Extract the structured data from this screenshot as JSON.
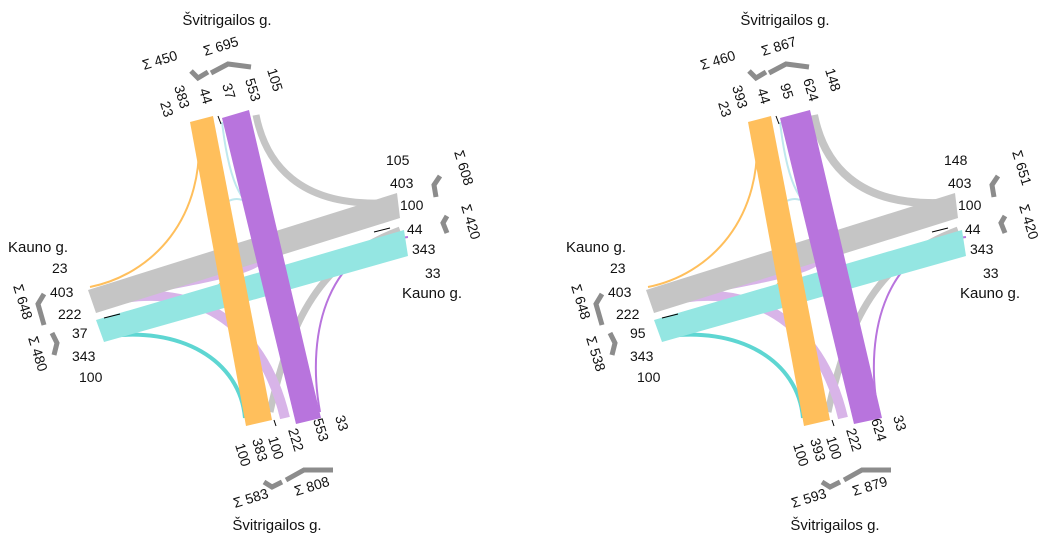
{
  "colors": {
    "orange": "#FFBF5C",
    "purple": "#B874DD",
    "lavender": "#D8B4E8",
    "teal": "#5ED6D2",
    "teal_light": "#94E6E2",
    "gray": "#C5C5C5",
    "lightblue": "#BFE8EE",
    "brace": "#8C8C8C",
    "text": "#111111"
  },
  "diagrams": [
    {
      "north": {
        "street": "Švitrigailos g.",
        "sums": {
          "a": "Σ 450",
          "b": "Σ 695"
        },
        "values": {
          "l1": "23",
          "l2": "383",
          "l3": "44",
          "l4": "37",
          "l5": "553",
          "l6": "105"
        }
      },
      "east": {
        "street": "Kauno g.",
        "sums": {
          "a": "Σ 608",
          "b": "Σ 420"
        },
        "values": {
          "l1": "105",
          "l2": "403",
          "l3": "100",
          "l4": "44",
          "l5": "343",
          "l6": "33"
        }
      },
      "west": {
        "street": "Kauno g.",
        "sums": {
          "a": "Σ 648",
          "b": "Σ 480"
        },
        "values": {
          "l1": "23",
          "l2": "403",
          "l3": "222",
          "l4": "37",
          "l5": "343",
          "l6": "100"
        }
      },
      "south": {
        "street": "Švitrigailos g.",
        "sums": {
          "a": "Σ 583",
          "b": "Σ 808"
        },
        "values": {
          "l1": "100",
          "l2": "383",
          "l3": "100",
          "l4": "222",
          "l5": "553",
          "l6": "33"
        }
      }
    },
    {
      "north": {
        "street": "Švitrigailos g.",
        "sums": {
          "a": "Σ 460",
          "b": "Σ 867"
        },
        "values": {
          "l1": "23",
          "l2": "393",
          "l3": "44",
          "l4": "95",
          "l5": "624",
          "l6": "148"
        }
      },
      "east": {
        "street": "Kauno g.",
        "sums": {
          "a": "Σ 651",
          "b": "Σ 420"
        },
        "values": {
          "l1": "148",
          "l2": "403",
          "l3": "100",
          "l4": "44",
          "l5": "343",
          "l6": "33"
        }
      },
      "west": {
        "street": "Kauno g.",
        "sums": {
          "a": "Σ 648",
          "b": "Σ 538"
        },
        "values": {
          "l1": "23",
          "l2": "403",
          "l3": "222",
          "l4": "95",
          "l5": "343",
          "l6": "100"
        }
      },
      "south": {
        "street": "Švitrigailos g.",
        "sums": {
          "a": "Σ 593",
          "b": "Σ 879"
        },
        "values": {
          "l1": "100",
          "l2": "393",
          "l3": "100",
          "l4": "222",
          "l5": "624",
          "l6": "33"
        }
      }
    }
  ]
}
